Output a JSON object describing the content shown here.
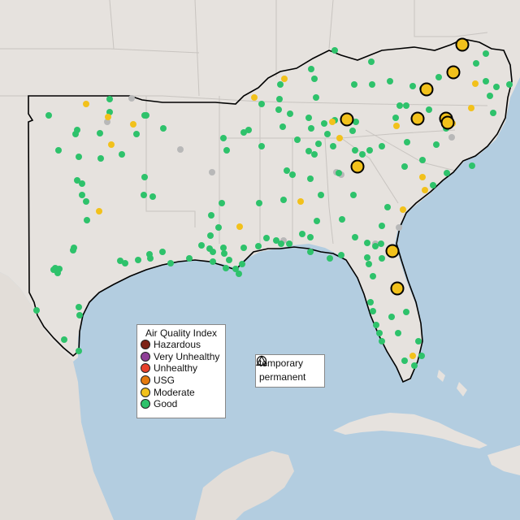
{
  "aqi_legend": {
    "title": "Air Quality Index",
    "items": [
      {
        "label": "Hazardous",
        "color": "#7e2418"
      },
      {
        "label": "Very Unhealthy",
        "color": "#8f3f97"
      },
      {
        "label": "Unhealthy",
        "color": "#e8412c"
      },
      {
        "label": "USG",
        "color": "#e57a0e"
      },
      {
        "label": "Moderate",
        "color": "#f2c11b"
      },
      {
        "label": "Good",
        "color": "#2ec26b"
      }
    ]
  },
  "type_legend": {
    "items": [
      {
        "label": "temporary",
        "icon": "circle-icon"
      },
      {
        "label": "permanent",
        "icon": "triangle-icon"
      }
    ]
  },
  "colors": {
    "water": "#b3cde0",
    "land": "#e8e4e0",
    "good": "#2ec26b",
    "moderate": "#f2c11b",
    "nodata": "#b8b8b8",
    "outline": "#000000"
  }
}
